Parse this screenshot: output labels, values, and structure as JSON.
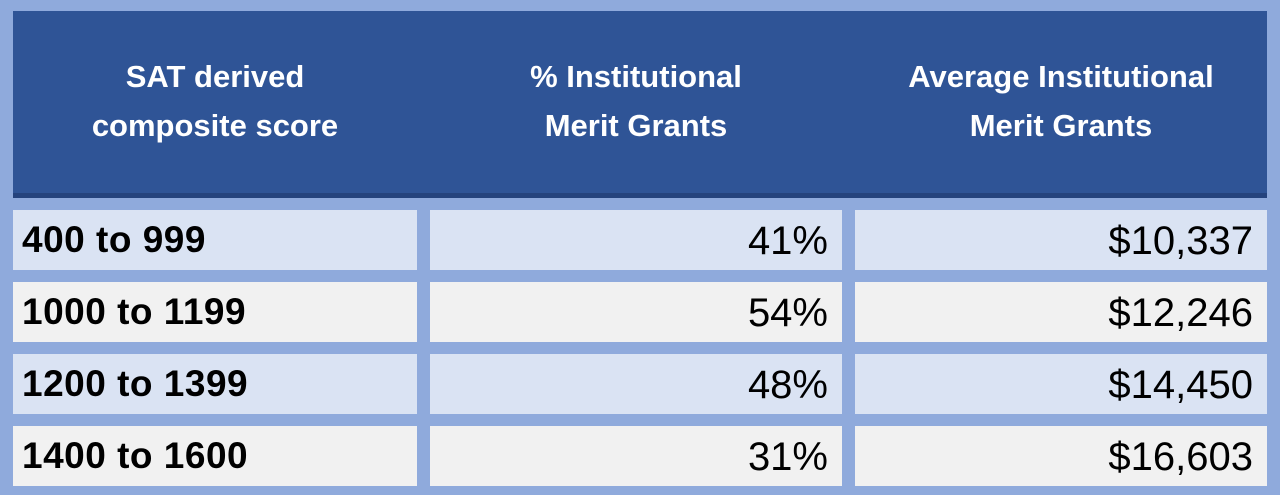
{
  "colors": {
    "header_bg": "#2F5496",
    "header_text": "#FFFFFF",
    "header_bottom_edge": "#25437D",
    "grid_border": "#8FAADC",
    "row_blue": "#DAE3F3",
    "row_gray": "#F1F1F1",
    "body_text": "#000000"
  },
  "header": {
    "col1_lines": [
      "SAT derived",
      "composite score"
    ],
    "col2_lines": [
      "% Institutional",
      "Merit Grants"
    ],
    "col3_lines": [
      "Average Institutional",
      "Merit Grants"
    ]
  },
  "rows": [
    {
      "score": "400 to 999",
      "percent": "41%",
      "amount": "$10,337"
    },
    {
      "score": "1000 to 1199",
      "percent": "54%",
      "amount": "$12,246"
    },
    {
      "score": "1200 to 1399",
      "percent": "48%",
      "amount": "$14,450"
    },
    {
      "score": "1400 to 1600",
      "percent": "31%",
      "amount": "$16,603"
    }
  ],
  "chart_data": {
    "type": "table",
    "title": "",
    "columns": [
      "SAT derived composite score",
      "% Institutional Merit Grants",
      "Average Institutional Merit Grants"
    ],
    "rows": [
      [
        "400 to 999",
        "41%",
        "$10,337"
      ],
      [
        "1000 to 1199",
        "54%",
        "$12,246"
      ],
      [
        "1200 to 1399",
        "48%",
        "$14,450"
      ],
      [
        "1400 to 1600",
        "31%",
        "$16,603"
      ]
    ]
  }
}
